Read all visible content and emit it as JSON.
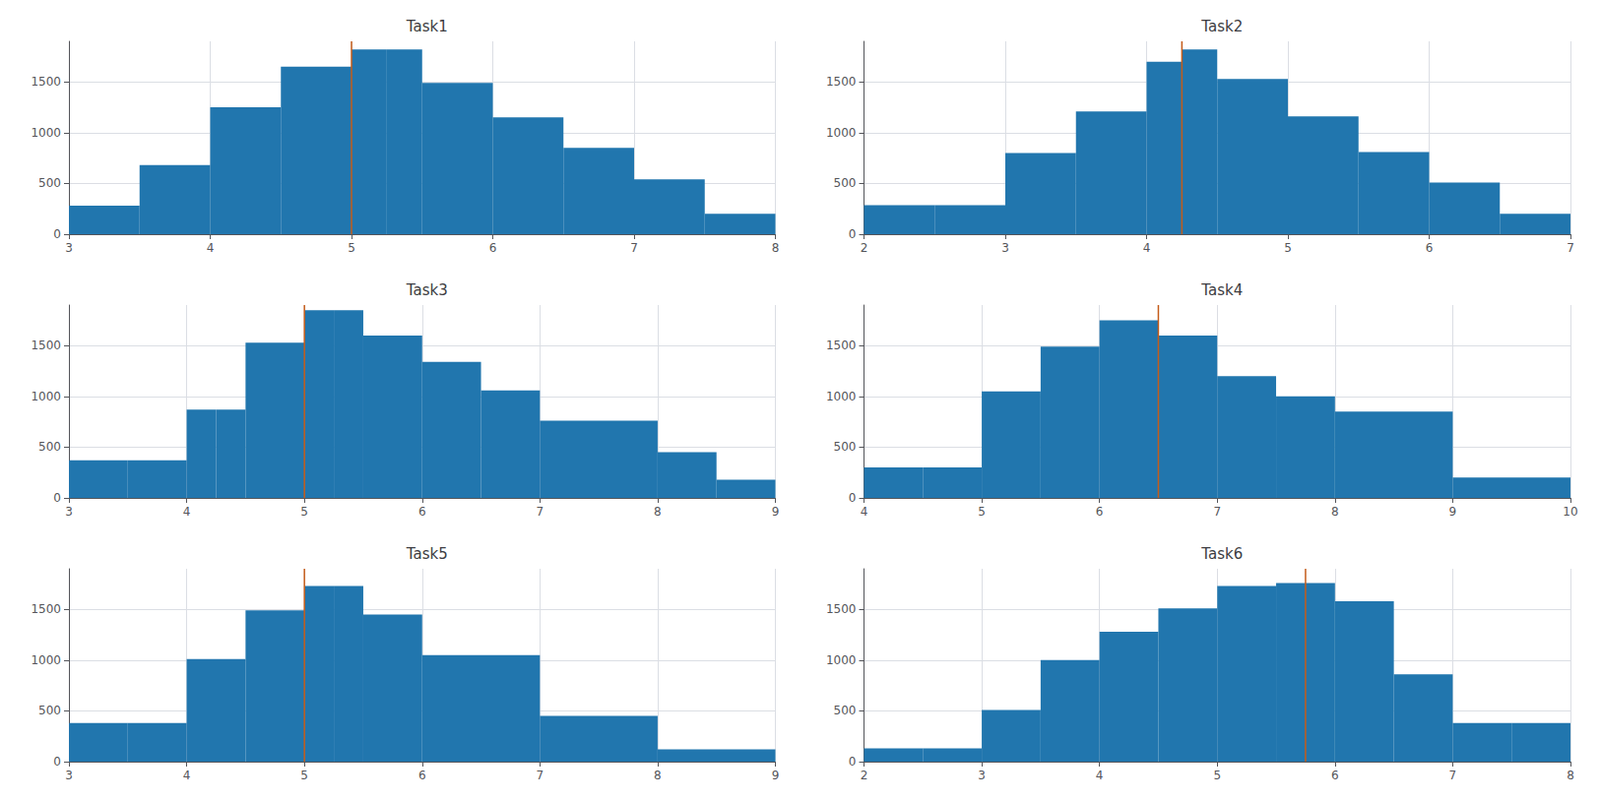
{
  "chart_data": [
    {
      "type": "histogram",
      "title": "Task1",
      "bins": [
        3.0,
        3.5,
        4.0,
        4.5,
        5.0,
        5.25,
        5.5,
        6.0,
        6.5,
        7.0,
        7.5,
        8.0
      ],
      "values": [
        280,
        680,
        1250,
        1650,
        1820,
        1820,
        1490,
        1150,
        850,
        540,
        200
      ],
      "color": "#2176ae",
      "vline": {
        "x": 5.0,
        "color": "#c45c1a"
      },
      "xlim": [
        3,
        8
      ],
      "xticks": [
        3,
        4,
        5,
        6,
        7,
        8
      ],
      "ylim": [
        0,
        1900
      ],
      "yticks": [
        0,
        500,
        1000,
        1500
      ],
      "grid": true
    },
    {
      "type": "histogram",
      "title": "Task2",
      "bins": [
        2.0,
        2.5,
        3.0,
        3.5,
        4.0,
        4.25,
        4.5,
        5.0,
        5.5,
        6.0,
        6.5,
        7.0
      ],
      "values": [
        285,
        285,
        800,
        1210,
        1700,
        1820,
        1530,
        1160,
        810,
        510,
        200
      ],
      "color": "#2176ae",
      "vline": {
        "x": 4.25,
        "color": "#c45c1a"
      },
      "xlim": [
        2,
        7
      ],
      "xticks": [
        2,
        3,
        4,
        5,
        6,
        7
      ],
      "ylim": [
        0,
        1900
      ],
      "yticks": [
        0,
        500,
        1000,
        1500
      ],
      "grid": true
    },
    {
      "type": "histogram",
      "title": "Task3",
      "bins": [
        3.0,
        3.5,
        4.0,
        4.25,
        4.5,
        5.0,
        5.25,
        5.5,
        6.0,
        6.5,
        7.0,
        8.0,
        8.5,
        9.0
      ],
      "values": [
        370,
        370,
        870,
        870,
        1530,
        1850,
        1850,
        1600,
        1340,
        1060,
        760,
        450,
        180
      ],
      "color": "#2176ae",
      "vline": {
        "x": 5.0,
        "color": "#c45c1a"
      },
      "xlim": [
        3,
        9
      ],
      "xticks": [
        3,
        4,
        5,
        6,
        7,
        8,
        9
      ],
      "ylim": [
        0,
        1900
      ],
      "yticks": [
        0,
        500,
        1000,
        1500
      ],
      "grid": true
    },
    {
      "type": "histogram",
      "title": "Task4",
      "bins": [
        4.0,
        4.5,
        5.0,
        5.5,
        6.0,
        6.5,
        7.0,
        7.5,
        8.0,
        9.0,
        10.0
      ],
      "values": [
        300,
        300,
        1050,
        1490,
        1750,
        1600,
        1200,
        1000,
        850,
        200
      ],
      "color": "#2176ae",
      "vline": {
        "x": 6.5,
        "color": "#c45c1a"
      },
      "xlim": [
        4,
        10
      ],
      "xticks": [
        4,
        5,
        6,
        7,
        8,
        9,
        10
      ],
      "ylim": [
        0,
        1900
      ],
      "yticks": [
        0,
        500,
        1000,
        1500
      ],
      "grid": true
    },
    {
      "type": "histogram",
      "title": "Task5",
      "bins": [
        3.0,
        3.5,
        4.0,
        4.5,
        5.0,
        5.25,
        5.5,
        6.0,
        7.0,
        8.0,
        9.0
      ],
      "values": [
        380,
        380,
        1010,
        1490,
        1730,
        1730,
        1450,
        1050,
        450,
        120
      ],
      "color": "#2176ae",
      "vline": {
        "x": 5.0,
        "color": "#c45c1a"
      },
      "xlim": [
        3,
        9
      ],
      "xticks": [
        3,
        4,
        5,
        6,
        7,
        8,
        9
      ],
      "ylim": [
        0,
        1900
      ],
      "yticks": [
        0,
        500,
        1000,
        1500
      ],
      "grid": true
    },
    {
      "type": "histogram",
      "title": "Task6",
      "bins": [
        2.0,
        2.5,
        3.0,
        3.5,
        4.0,
        4.5,
        5.0,
        5.5,
        6.0,
        6.5,
        7.0,
        7.5,
        8.0
      ],
      "values": [
        130,
        130,
        510,
        1000,
        1280,
        1510,
        1730,
        1760,
        1580,
        860,
        380,
        380
      ],
      "color": "#2176ae",
      "vline": {
        "x": 5.75,
        "color": "#c45c1a"
      },
      "xlim": [
        2,
        8
      ],
      "xticks": [
        2,
        3,
        4,
        5,
        6,
        7,
        8
      ],
      "ylim": [
        0,
        1900
      ],
      "yticks": [
        0,
        500,
        1000,
        1500
      ],
      "grid": true
    }
  ]
}
